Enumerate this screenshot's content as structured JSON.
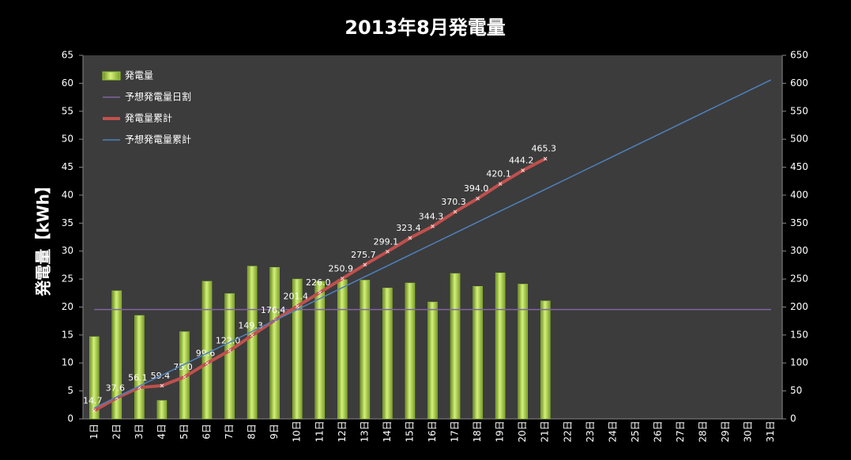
{
  "chart_data": {
    "type": "bar",
    "title": "2013年8月発電量",
    "y_label": "発電量【kWh】",
    "categories": [
      "1日",
      "2日",
      "3日",
      "4日",
      "5日",
      "6日",
      "7日",
      "8日",
      "9日",
      "10日",
      "11日",
      "12日",
      "13日",
      "14日",
      "15日",
      "16日",
      "17日",
      "18日",
      "19日",
      "20日",
      "21日",
      "22日",
      "23日",
      "24日",
      "25日",
      "26日",
      "27日",
      "28日",
      "29日",
      "30日",
      "31日"
    ],
    "ylim": [
      0,
      65
    ],
    "yticks": [
      0,
      5,
      10,
      15,
      20,
      25,
      30,
      35,
      40,
      45,
      50,
      55,
      60,
      65
    ],
    "y2lim": [
      0,
      650
    ],
    "y2ticks": [
      0,
      50,
      100,
      150,
      200,
      250,
      300,
      350,
      400,
      450,
      500,
      550,
      600,
      650
    ],
    "grid": false,
    "legend": "upper left",
    "series": [
      {
        "name": "発電量",
        "type": "bar",
        "color": "#9acd32",
        "values": [
          14.7,
          22.9,
          18.5,
          3.3,
          15.6,
          24.6,
          22.4,
          27.3,
          27.1,
          25.0,
          24.6,
          24.9,
          24.8,
          23.4,
          24.3,
          20.9,
          26.0,
          23.7,
          26.1,
          24.1,
          21.1,
          null,
          null,
          null,
          null,
          null,
          null,
          null,
          null,
          null,
          null
        ]
      },
      {
        "name": "予想発電量日割",
        "type": "line",
        "color": "#8064a2",
        "values": [
          19.55,
          19.55,
          19.55,
          19.55,
          19.55,
          19.55,
          19.55,
          19.55,
          19.55,
          19.55,
          19.55,
          19.55,
          19.55,
          19.55,
          19.55,
          19.55,
          19.55,
          19.55,
          19.55,
          19.55,
          19.55,
          19.55,
          19.55,
          19.55,
          19.55,
          19.55,
          19.55,
          19.55,
          19.55,
          19.55,
          19.55
        ]
      },
      {
        "name": "発電量累計",
        "type": "line",
        "axis": "y2",
        "color": "#c0504d",
        "markers": true,
        "values": [
          14.7,
          37.6,
          56.1,
          59.4,
          75.0,
          99.6,
          122.0,
          149.3,
          176.4,
          201.4,
          226.0,
          250.9,
          275.7,
          299.1,
          323.4,
          344.3,
          370.3,
          394.0,
          420.1,
          444.2,
          465.3,
          null,
          null,
          null,
          null,
          null,
          null,
          null,
          null,
          null,
          null
        ],
        "value_labels": [
          "14.7",
          "37.6",
          "56.1",
          "59.4",
          "75.0",
          "99.6",
          "122.0",
          "149.3",
          "176.4",
          "201.4",
          "226.0",
          "250.9",
          "275.7",
          "299.1",
          "323.4",
          "344.3",
          "370.3",
          "394.0",
          "420.1",
          "444.2",
          "465.3",
          null,
          null,
          null,
          null,
          null,
          null,
          null,
          null,
          null,
          null
        ]
      },
      {
        "name": "予想発電量累計",
        "type": "line",
        "axis": "y2",
        "color": "#4f81bd",
        "values": [
          19.6,
          39.1,
          58.7,
          78.2,
          97.8,
          117.3,
          136.9,
          156.4,
          176.0,
          195.5,
          215.1,
          234.6,
          254.2,
          273.7,
          293.3,
          312.8,
          332.4,
          351.9,
          371.5,
          391.0,
          410.6,
          430.1,
          449.7,
          469.2,
          488.8,
          508.3,
          527.9,
          547.4,
          567.0,
          586.5,
          606.1
        ]
      }
    ]
  }
}
